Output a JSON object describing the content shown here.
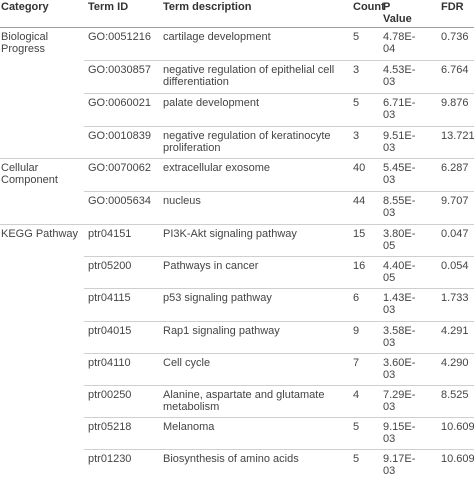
{
  "table": {
    "headers": {
      "category": "Category",
      "term_id": "Term ID",
      "description": "Term description",
      "count": "Count",
      "p_value": "P\nValue",
      "fdr": "FDR"
    },
    "rows": [
      {
        "category": "Biological\nProgress",
        "term_id": "GO:0051216",
        "description": "cartilage development",
        "count": "5",
        "p_value": "4.78E-\n04",
        "fdr": "0.736"
      },
      {
        "category": "",
        "term_id": "GO:0030857",
        "description": "negative regulation of epithelial cell\ndifferentiation",
        "count": "3",
        "p_value": "4.53E-\n03",
        "fdr": "6.764"
      },
      {
        "category": "",
        "term_id": "GO:0060021",
        "description": "palate development",
        "count": "5",
        "p_value": "6.71E-\n03",
        "fdr": "9.876"
      },
      {
        "category": "",
        "term_id": "GO:0010839",
        "description": "negative regulation of keratinocyte\nproliferation",
        "count": "3",
        "p_value": "9.51E-\n03",
        "fdr": "13.721"
      },
      {
        "category": "Cellular\nComponent",
        "term_id": "GO:0070062",
        "description": "extracellular exosome",
        "count": "40",
        "p_value": "5.45E-\n03",
        "fdr": "6.287"
      },
      {
        "category": "",
        "term_id": "GO:0005634",
        "description": "nucleus",
        "count": "44",
        "p_value": "8.55E-\n03",
        "fdr": "9.707"
      },
      {
        "category": "KEGG Pathway",
        "term_id": "ptr04151",
        "description": "PI3K-Akt signaling pathway",
        "count": "15",
        "p_value": "3.80E-\n05",
        "fdr": "0.047"
      },
      {
        "category": "",
        "term_id": "ptr05200",
        "description": "Pathways in cancer",
        "count": "16",
        "p_value": "4.40E-\n05",
        "fdr": "0.054"
      },
      {
        "category": "",
        "term_id": "ptr04115",
        "description": "p53 signaling pathway",
        "count": "6",
        "p_value": "1.43E-\n03",
        "fdr": "1.733"
      },
      {
        "category": "",
        "term_id": "ptr04015",
        "description": "Rap1 signaling pathway",
        "count": "9",
        "p_value": "3.58E-\n03",
        "fdr": "4.291"
      },
      {
        "category": "",
        "term_id": "ptr04110",
        "description": "Cell cycle",
        "count": "7",
        "p_value": "3.60E-\n03",
        "fdr": "4.290"
      },
      {
        "category": "",
        "term_id": "ptr00250",
        "description": "Alanine, aspartate and glutamate\nmetabolism",
        "count": "4",
        "p_value": "7.29E-\n03",
        "fdr": "8.525"
      },
      {
        "category": "",
        "term_id": "ptr05218",
        "description": "Melanoma",
        "count": "5",
        "p_value": "9.15E-\n03",
        "fdr": "10.609"
      },
      {
        "category": "",
        "term_id": "ptr01230",
        "description": "Biosynthesis of amino acids",
        "count": "5",
        "p_value": "9.17E-\n03",
        "fdr": "10.609"
      }
    ]
  }
}
